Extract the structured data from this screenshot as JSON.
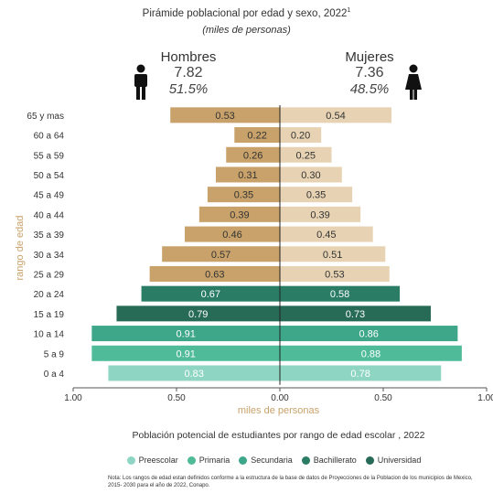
{
  "chart_data": {
    "type": "bar",
    "title": "Pirámide poblacional por edad y sexo, 2022",
    "title_sup": "1",
    "subtitle": "(miles de personas)",
    "xlabel": "miles de personas",
    "ylabel": "rango de edad",
    "xlim": [
      -1.0,
      1.0
    ],
    "x_ticks": [
      "1.00",
      "0.50",
      "0.00",
      "0.50",
      "1.00"
    ],
    "categories": [
      "65 y mas",
      "60 a 64",
      "55 a 59",
      "50 a 54",
      "45 a 49",
      "40 a 44",
      "35 a 39",
      "30 a 34",
      "25 a 29",
      "20 a 24",
      "15 a 19",
      "10 a 14",
      "5 a 9",
      "0 a 4"
    ],
    "series": [
      {
        "name": "Hombres",
        "values": [
          0.53,
          0.22,
          0.26,
          0.31,
          0.35,
          0.39,
          0.46,
          0.57,
          0.63,
          0.67,
          0.79,
          0.91,
          0.91,
          0.83
        ]
      },
      {
        "name": "Mujeres",
        "values": [
          0.54,
          0.2,
          0.25,
          0.3,
          0.35,
          0.39,
          0.45,
          0.51,
          0.53,
          0.58,
          0.73,
          0.86,
          0.88,
          0.78
        ]
      }
    ],
    "male_value_labels": [
      "0.53",
      "0.22",
      "0.26",
      "0.31",
      "0.35",
      "0.39",
      "0.46",
      "0.57",
      "0.63",
      "0.67",
      "0.79",
      "0.91",
      "0.91",
      "0.83"
    ],
    "female_value_labels": [
      "0.54",
      "0.20",
      "0.25",
      "0.30",
      "0.35",
      "0.39",
      "0.45",
      "0.51",
      "0.53",
      "0.58",
      "0.73",
      "0.86",
      "0.88",
      "0.78"
    ],
    "row_groups": [
      "none",
      "none",
      "none",
      "none",
      "none",
      "none",
      "none",
      "none",
      "none",
      "bachillerato",
      "universidad",
      "secundaria",
      "primaria",
      "preescolar"
    ],
    "colors": {
      "male_none": "#c8a26a",
      "female_none": "#e7d3b3",
      "preescolar": "#8ed6c3",
      "primaria": "#4fbb98",
      "secundaria": "#3ea789",
      "bachillerato": "#2a7d64",
      "universidad": "#276a56"
    },
    "grid": false,
    "legend": "bottom"
  },
  "header": {
    "male": {
      "label": "Hombres",
      "total": "7.82",
      "pct": "51.5%"
    },
    "female": {
      "label": "Mujeres",
      "total": "7.36",
      "pct": "48.5%"
    }
  },
  "legend": {
    "title": "Población potencial de estudiantes por rango de edad escolar , 2022",
    "items": [
      {
        "label": "Preescolar",
        "color": "#8ed6c3"
      },
      {
        "label": "Primaria",
        "color": "#4fbb98"
      },
      {
        "label": "Secundaria",
        "color": "#3ea789"
      },
      {
        "label": "Bachillerato",
        "color": "#2a7d64"
      },
      {
        "label": "Universidad",
        "color": "#276a56"
      }
    ]
  },
  "note": "Nota: Los rangos de edad estan definidos conforme a la estructura de la base de datos de Proyecciones de la Poblacion de los municipios de Mexico, 2015- 2030 para el año de 2022, Conapo."
}
